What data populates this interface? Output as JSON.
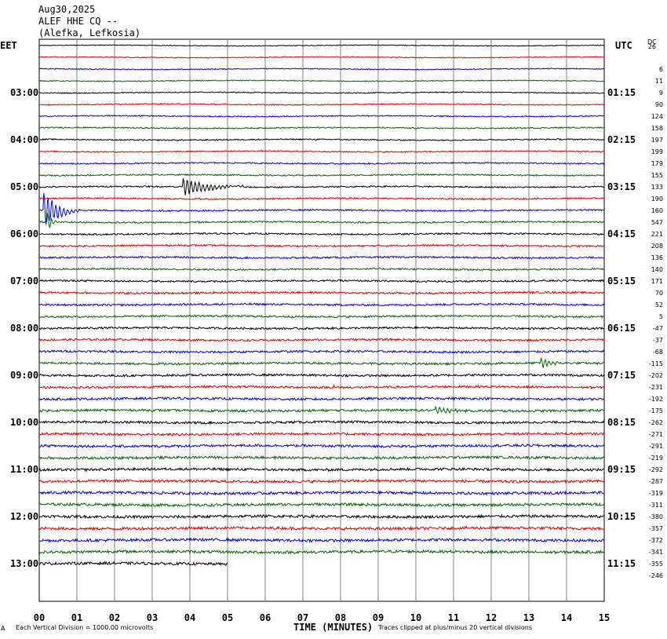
{
  "header": {
    "date": "Aug30,2025",
    "station": "ALEF HHE CQ --",
    "location": "(Alefka, Lefkosia)"
  },
  "left_tz": "EET",
  "right_tz": "UTC",
  "dc_heading": "DC",
  "footer": {
    "corner": "A",
    "scale": "Each Vertical Division = 1000.00 microvolts",
    "xlabel": "TIME (MINUTES)",
    "clip": "Traces clipped at plus/minus 20 vertical divisions"
  },
  "colors": {
    "black": "#000000",
    "red": "#e00000",
    "blue": "#0000cc",
    "green": "#006600",
    "grid": "#808080"
  },
  "chart_data": {
    "type": "line",
    "title": "ALEF HHE CQ --",
    "xlabel": "TIME (MINUTES)",
    "ylabel": "",
    "x_ticks": [
      "00",
      "01",
      "02",
      "03",
      "04",
      "05",
      "06",
      "07",
      "08",
      "09",
      "10",
      "11",
      "12",
      "13",
      "14",
      "15"
    ],
    "xlim": [
      0,
      15
    ],
    "minutes_per_trace": 15,
    "trace_color_cycle": [
      "black",
      "red",
      "blue",
      "green"
    ],
    "left_hour_labels": [
      "03:00",
      "04:00",
      "05:00",
      "06:00",
      "07:00",
      "08:00",
      "09:00",
      "10:00",
      "11:00",
      "12:00",
      "13:00"
    ],
    "right_hour_labels": [
      "01:15",
      "02:15",
      "03:15",
      "04:15",
      "05:15",
      "06:15",
      "07:15",
      "08:15",
      "09:15",
      "10:15",
      "11:15"
    ],
    "dc_offsets": [
      26,
      6,
      11,
      9,
      90,
      124,
      158,
      197,
      199,
      179,
      155,
      133,
      190,
      160,
      547,
      221,
      208,
      136,
      140,
      171,
      70,
      52,
      5,
      -47,
      -37,
      -68,
      -115,
      -202,
      -231,
      -192,
      -175,
      -262,
      -271,
      -291,
      -219,
      -292,
      -287,
      -319,
      -311,
      -380,
      -357,
      -372,
      -341,
      -355,
      -246
    ],
    "last_trace_end_minute": 5.0,
    "events": [
      {
        "trace": 12,
        "minute": 3.8,
        "amplitude": 12,
        "duration": 1.6,
        "type": "teleseism"
      },
      {
        "trace": 14,
        "minute": 0.1,
        "amplitude": 24,
        "duration": 1.0,
        "type": "teleseism"
      },
      {
        "trace": 15,
        "minute": 0.2,
        "amplitude": 18,
        "duration": 0.3,
        "type": "spike"
      },
      {
        "trace": 26,
        "minute": 1.5,
        "amplitude": 2,
        "duration": 0.2,
        "type": "local"
      },
      {
        "trace": 27,
        "minute": 13.3,
        "amplitude": 10,
        "duration": 0.6,
        "type": "local"
      },
      {
        "trace": 29,
        "minute": 7.8,
        "amplitude": 4,
        "duration": 0.3,
        "type": "local"
      },
      {
        "trace": 31,
        "minute": 10.5,
        "amplitude": 6,
        "duration": 1.2,
        "type": "local"
      }
    ]
  }
}
